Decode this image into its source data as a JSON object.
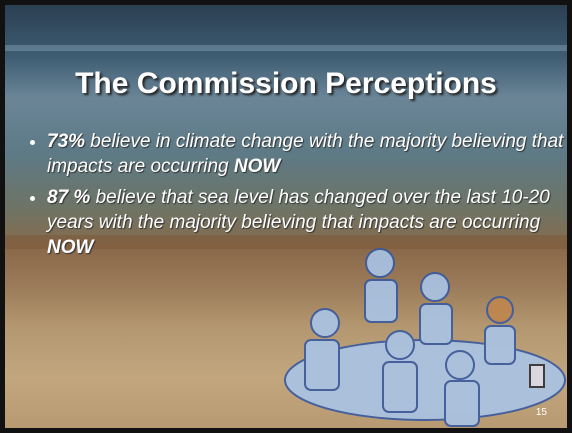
{
  "slide": {
    "title": "The Commission Perceptions",
    "bullets": [
      {
        "segments": [
          {
            "text": "73%",
            "bold": true
          },
          {
            "text": " believe in climate change with the majority believing that impacts are occurring ",
            "bold": false
          },
          {
            "text": "NOW",
            "bold": true
          }
        ]
      },
      {
        "segments": [
          {
            "text": "87 %",
            "bold": true
          },
          {
            "text": " believe that sea level has changed over the last 10-20 years with the majority believing that impacts are occurring ",
            "bold": false
          },
          {
            "text": "NOW",
            "bold": true
          }
        ]
      }
    ],
    "page_number": "15"
  }
}
